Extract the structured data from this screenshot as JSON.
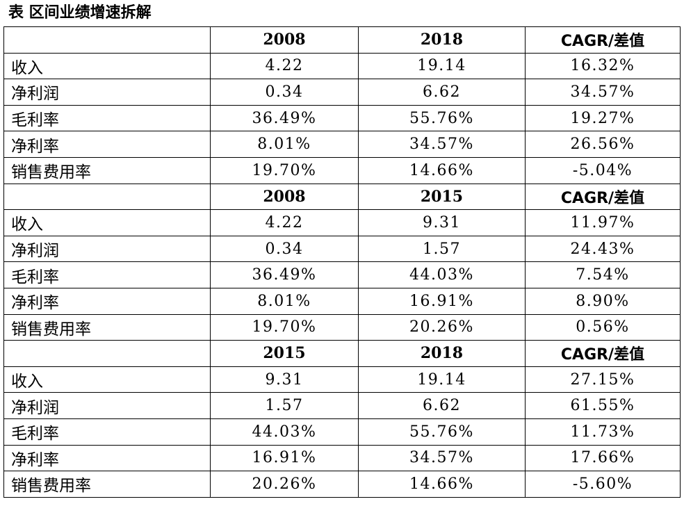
{
  "title": "表 区间业绩增速拆解",
  "sections": [
    {
      "header": [
        "",
        "2008",
        "2018",
        "CAGR/差值"
      ],
      "rows": [
        [
          "收入",
          "4.22",
          "19.14",
          "16.32%"
        ],
        [
          "净利润",
          "0.34",
          "6.62",
          "34.57%"
        ],
        [
          "毛利率",
          "36.49%",
          "55.76%",
          "19.27%"
        ],
        [
          "净利率",
          "8.01%",
          "34.57%",
          "26.56%"
        ],
        [
          "销售费用率",
          "19.70%",
          "14.66%",
          "-5.04%"
        ]
      ]
    },
    {
      "header": [
        "",
        "2008",
        "2015",
        "CAGR/差值"
      ],
      "rows": [
        [
          "收入",
          "4.22",
          "9.31",
          "11.97%"
        ],
        [
          "净利润",
          "0.34",
          "1.57",
          "24.43%"
        ],
        [
          "毛利率",
          "36.49%",
          "44.03%",
          "7.54%"
        ],
        [
          "净利率",
          "8.01%",
          "16.91%",
          "8.90%"
        ],
        [
          "销售费用率",
          "19.70%",
          "20.26%",
          "0.56%"
        ]
      ]
    },
    {
      "header": [
        "",
        "2015",
        "2018",
        "CAGR/差值"
      ],
      "rows": [
        [
          "收入",
          "9.31",
          "19.14",
          "27.15%"
        ],
        [
          "净利润",
          "1.57",
          "6.62",
          "61.55%"
        ],
        [
          "毛利率",
          "44.03%",
          "55.76%",
          "11.73%"
        ],
        [
          "净利率",
          "16.91%",
          "34.57%",
          "17.66%"
        ],
        [
          "销售费用率",
          "20.26%",
          "14.66%",
          "-5.60%"
        ]
      ]
    }
  ]
}
